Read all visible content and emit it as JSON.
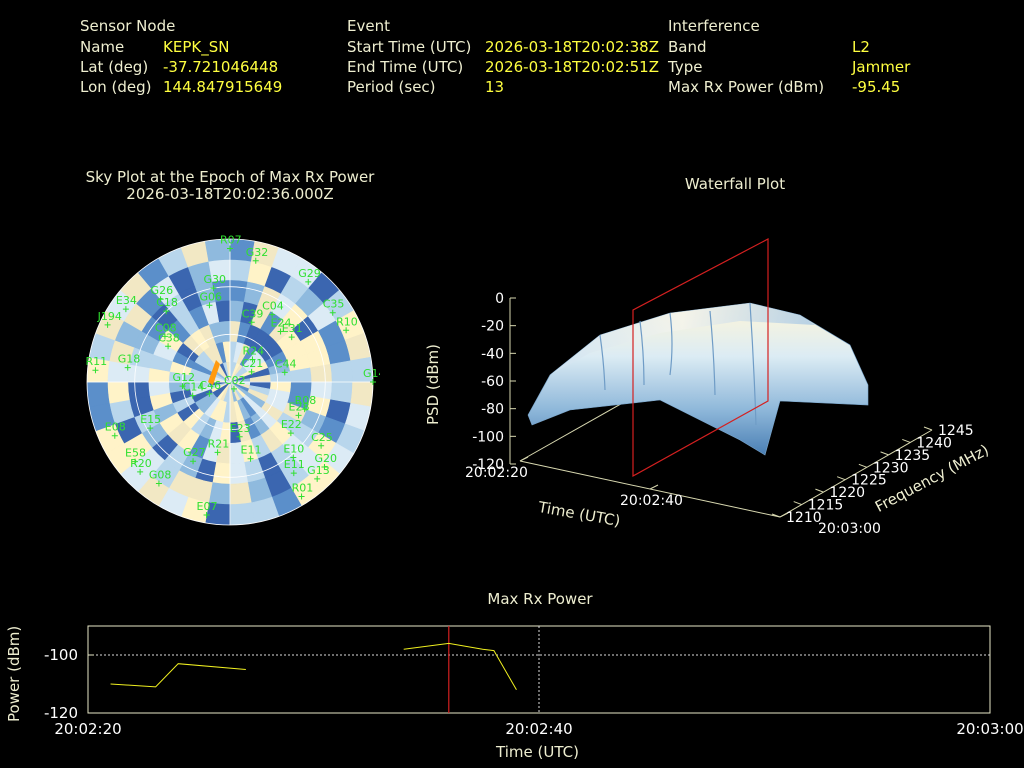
{
  "info": {
    "sensor": {
      "heading": "Sensor Node",
      "rows": [
        {
          "label": "Name",
          "value": "KEPK_SN"
        },
        {
          "label": "Lat (deg)",
          "value": "-37.721046448"
        },
        {
          "label": "Lon (deg)",
          "value": "144.847915649"
        }
      ]
    },
    "event": {
      "heading": "Event",
      "rows": [
        {
          "label": "Start Time (UTC)",
          "value": "2026-03-18T20:02:38Z"
        },
        {
          "label": "End Time (UTC)",
          "value": "2026-03-18T20:02:51Z"
        },
        {
          "label": "Period (sec)",
          "value": "13"
        }
      ]
    },
    "interference": {
      "heading": "Interference",
      "rows": [
        {
          "label": "Band",
          "value": "L2"
        },
        {
          "label": "Type",
          "value": "Jammer"
        },
        {
          "label": "Max Rx Power (dBm)",
          "value": "-95.45"
        }
      ]
    }
  },
  "chart_data": [
    {
      "type": "scatter",
      "name": "sky-plot",
      "title": "Sky Plot at the Epoch of Max Rx Power",
      "subtitle": "2026-03-18T20:02:36.000Z",
      "satellites": [
        {
          "id": "R07",
          "az": 0,
          "el": 6
        },
        {
          "id": "G32",
          "az": 12,
          "el": 12
        },
        {
          "id": "G29",
          "az": 38,
          "el": 10
        },
        {
          "id": "C35",
          "az": 56,
          "el": 12
        },
        {
          "id": "R10",
          "az": 66,
          "el": 10
        },
        {
          "id": "G14",
          "az": 90,
          "el": 0
        },
        {
          "id": "C04",
          "az": 32,
          "el": 40
        },
        {
          "id": "E24",
          "az": 45,
          "el": 45
        },
        {
          "id": "E31",
          "az": 54,
          "el": 42
        },
        {
          "id": "G30",
          "az": 350,
          "el": 30
        },
        {
          "id": "G06",
          "az": 345,
          "el": 40
        },
        {
          "id": "C39",
          "az": 20,
          "el": 50
        },
        {
          "id": "R24",
          "az": 45,
          "el": 70
        },
        {
          "id": "C21",
          "az": 65,
          "el": 75
        },
        {
          "id": "C44",
          "az": 80,
          "el": 55
        },
        {
          "id": "C02",
          "az": 150,
          "el": 85
        },
        {
          "id": "R08",
          "az": 110,
          "el": 40
        },
        {
          "id": "E28",
          "az": 116,
          "el": 42
        },
        {
          "id": "E22",
          "az": 130,
          "el": 40
        },
        {
          "id": "E10",
          "az": 140,
          "el": 28
        },
        {
          "id": "C25",
          "az": 125,
          "el": 20
        },
        {
          "id": "E11",
          "az": 145,
          "el": 20
        },
        {
          "id": "G20",
          "az": 132,
          "el": 10
        },
        {
          "id": "G13",
          "az": 138,
          "el": 8
        },
        {
          "id": "R01",
          "az": 148,
          "el": 5
        },
        {
          "id": "E23",
          "az": 170,
          "el": 55
        },
        {
          "id": "E11",
          "az": 165,
          "el": 40
        },
        {
          "id": "R21",
          "az": 190,
          "el": 45
        },
        {
          "id": "E07",
          "az": 190,
          "el": 5
        },
        {
          "id": "G08",
          "az": 215,
          "el": 12
        },
        {
          "id": "R20",
          "az": 225,
          "el": 10
        },
        {
          "id": "E58",
          "az": 230,
          "el": 12
        },
        {
          "id": "E08",
          "az": 245,
          "el": 10
        },
        {
          "id": "G27",
          "az": 205,
          "el": 35
        },
        {
          "id": "E15",
          "az": 240,
          "el": 32
        },
        {
          "id": "C14",
          "az": 250,
          "el": 65
        },
        {
          "id": "R11",
          "az": 275,
          "el": 5
        },
        {
          "id": "G18",
          "az": 278,
          "el": 25
        },
        {
          "id": "C38",
          "az": 300,
          "el": 45
        },
        {
          "id": "C08",
          "az": 305,
          "el": 40
        },
        {
          "id": "E34",
          "az": 305,
          "el": 10
        },
        {
          "id": "J194",
          "az": 295,
          "el": 5
        },
        {
          "id": "G26",
          "az": 320,
          "el": 22
        },
        {
          "id": "C18",
          "az": 318,
          "el": 30
        },
        {
          "id": "G12",
          "az": 265,
          "el": 60
        },
        {
          "id": "C46",
          "az": 240,
          "el": 75
        }
      ]
    },
    {
      "type": "area",
      "name": "waterfall-plot",
      "title": "Waterfall Plot",
      "xlabel": "Time (UTC)",
      "ylabel": "Frequency (MHz)",
      "zlabel": "PSD (dBm)",
      "time_ticks": [
        "20:02:20",
        "20:02:40",
        "20:03:00"
      ],
      "freq_ticks": [
        1210,
        1215,
        1220,
        1225,
        1230,
        1235,
        1240,
        1245
      ],
      "psd_ticks": [
        0,
        -20,
        -40,
        -60,
        -80,
        -100,
        -120
      ],
      "zlim": [
        -120,
        0
      ],
      "marker_time": "20:02:36"
    },
    {
      "type": "line",
      "name": "max-rx-power",
      "title": "Max Rx Power",
      "xlabel": "Time (UTC)",
      "ylabel": "Power (dBm)",
      "xlim": [
        0,
        40
      ],
      "ylim": [
        -120,
        -90
      ],
      "x_ticks": [
        {
          "t": 0,
          "label": "20:02:20"
        },
        {
          "t": 20,
          "label": "20:02:40"
        },
        {
          "t": 40,
          "label": "20:03:00"
        }
      ],
      "y_ticks": [
        -100,
        -120
      ],
      "threshold": -100,
      "marker_t": 16,
      "series": [
        {
          "segments": [
            [
              [
                1,
                -110
              ],
              [
                3,
                -111
              ],
              [
                4,
                -103
              ],
              [
                7,
                -105
              ]
            ],
            [
              [
                14,
                -98
              ],
              [
                16,
                -96
              ],
              [
                17.5,
                -98
              ],
              [
                18,
                -98.5
              ],
              [
                19,
                -112
              ]
            ]
          ]
        }
      ]
    }
  ]
}
